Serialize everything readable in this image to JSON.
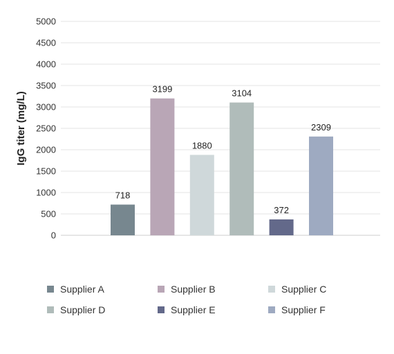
{
  "chart_data": {
    "type": "bar",
    "ylabel": "IgG titer (mg/L)",
    "xlabel": "",
    "ylim": [
      0,
      5000
    ],
    "y_ticks": [
      0,
      500,
      1000,
      1500,
      2000,
      2500,
      3000,
      3500,
      4000,
      4500,
      5000
    ],
    "grid": true,
    "legend_position": "bottom",
    "series": [
      {
        "name": "Supplier A",
        "value": 718,
        "color": "#77878f"
      },
      {
        "name": "Supplier B",
        "value": 3199,
        "color": "#b9a6b6"
      },
      {
        "name": "Supplier C",
        "value": 1880,
        "color": "#cfd8da"
      },
      {
        "name": "Supplier D",
        "value": 3104,
        "color": "#b0bcba"
      },
      {
        "name": "Supplier E",
        "value": 372,
        "color": "#63698a"
      },
      {
        "name": "Supplier F",
        "value": 2309,
        "color": "#9eaac1"
      }
    ]
  }
}
